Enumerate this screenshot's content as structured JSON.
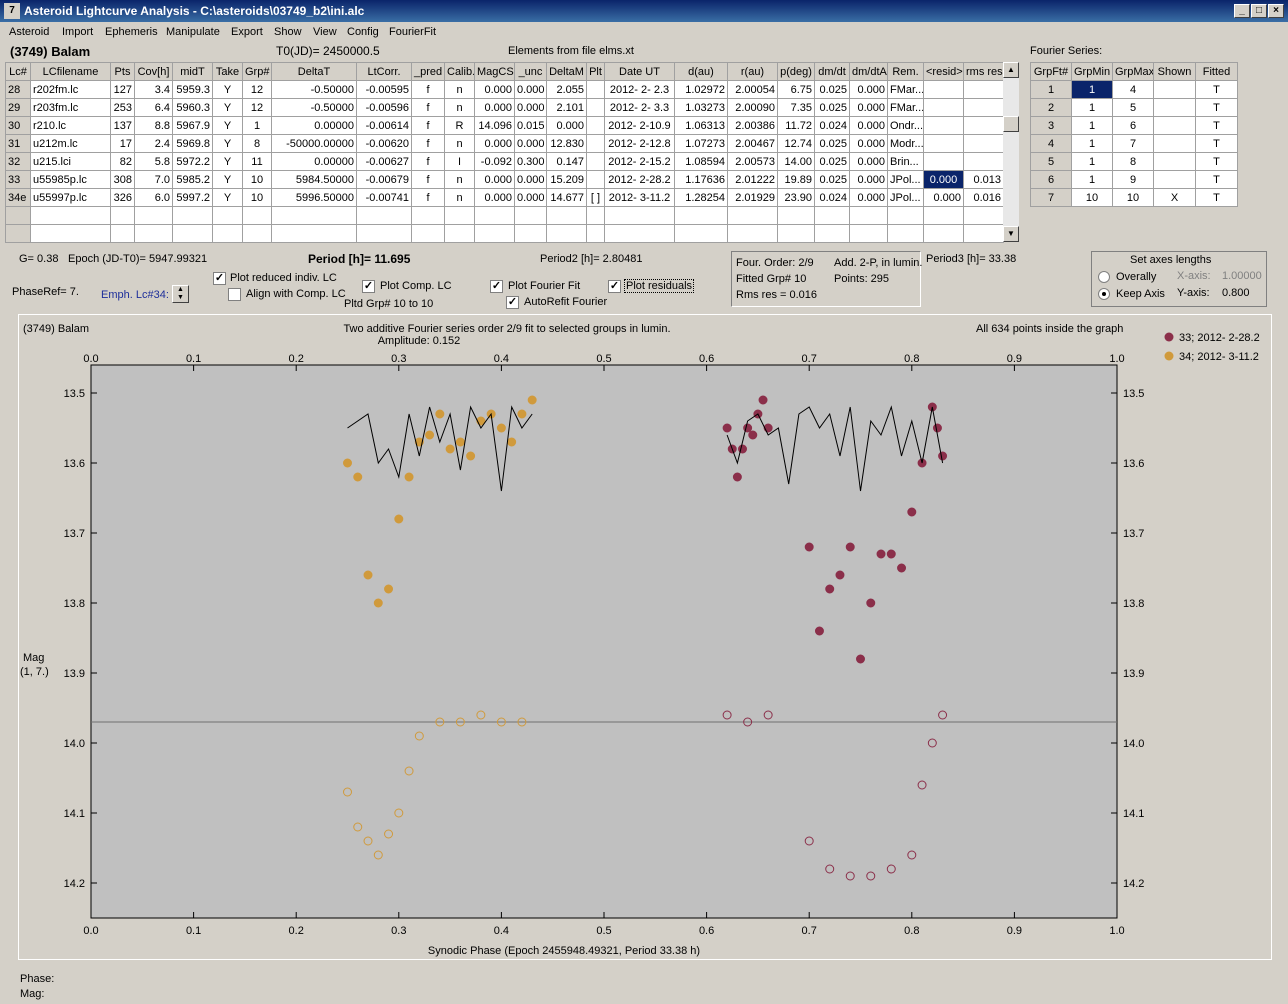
{
  "window": {
    "title": "Asteroid Lightcurve Analysis - C:\\asteroids\\03749_b2\\ini.alc",
    "icon": "ALCDEF-app-icon",
    "min_label": "_",
    "max_label": "□",
    "close_label": "×"
  },
  "menu": [
    "Asteroid",
    "Import",
    "Ephemeris",
    "Manipulate",
    "Export",
    "Show",
    "View",
    "Config",
    "FourierFit"
  ],
  "header": {
    "asteroid": "(3749) Balam",
    "t0": "T0(JD)= 2450000.5",
    "elements": "Elements from file elms.xt"
  },
  "lc_table": {
    "columns": [
      "Lc#",
      "LCfilename",
      "Pts",
      "Cov[h]",
      "midT",
      "Take",
      "Grp#",
      "DeltaT",
      "LtCorr.",
      "_pred",
      "Calib.",
      "MagCS",
      "_unc",
      "DeltaM",
      "Plt",
      "Date UT",
      "d(au)",
      "r(au)",
      "p(deg)",
      "dm/dt",
      "dm/dtA",
      "Rem.",
      "<resid>",
      "rms res"
    ],
    "rows": [
      [
        "28",
        "r202fm.lc",
        "127",
        "3.4",
        "5959.3",
        "Y",
        "12",
        "-0.50000",
        "-0.00595",
        "f",
        "n",
        "0.000",
        "0.000",
        "2.055",
        "",
        "2012- 2- 2.3",
        "1.02972",
        "2.00054",
        "6.75",
        "0.025",
        "0.000",
        "FMar...",
        "",
        ""
      ],
      [
        "29",
        "r203fm.lc",
        "253",
        "6.4",
        "5960.3",
        "Y",
        "12",
        "-0.50000",
        "-0.00596",
        "f",
        "n",
        "0.000",
        "0.000",
        "2.101",
        "",
        "2012- 2- 3.3",
        "1.03273",
        "2.00090",
        "7.35",
        "0.025",
        "0.000",
        "FMar...",
        "",
        ""
      ],
      [
        "30",
        "r210.lc",
        "137",
        "8.8",
        "5967.9",
        "Y",
        "1",
        "0.00000",
        "-0.00614",
        "f",
        "R",
        "14.096",
        "0.015",
        "0.000",
        "",
        "2012- 2-10.9",
        "1.06313",
        "2.00386",
        "11.72",
        "0.024",
        "0.000",
        "Ondr...",
        "",
        ""
      ],
      [
        "31",
        "u212m.lc",
        "17",
        "2.4",
        "5969.8",
        "Y",
        "8",
        "-50000.00000",
        "-0.00620",
        "f",
        "n",
        "0.000",
        "0.000",
        "12.830",
        "",
        "2012- 2-12.8",
        "1.07273",
        "2.00467",
        "12.74",
        "0.025",
        "0.000",
        "Modr...",
        "",
        ""
      ],
      [
        "32",
        "u215.lci",
        "82",
        "5.8",
        "5972.2",
        "Y",
        "11",
        "0.00000",
        "-0.00627",
        "f",
        "I",
        "-0.092",
        "0.300",
        "0.147",
        "",
        "2012- 2-15.2",
        "1.08594",
        "2.00573",
        "14.00",
        "0.025",
        "0.000",
        "Brin...",
        "",
        ""
      ],
      [
        "33",
        "u55985p.lc",
        "308",
        "7.0",
        "5985.2",
        "Y",
        "10",
        "5984.50000",
        "-0.00679",
        "f",
        "n",
        "0.000",
        "0.000",
        "15.209",
        "",
        "2012- 2-28.2",
        "1.17636",
        "2.01222",
        "19.89",
        "0.025",
        "0.000",
        "JPol...",
        "0.000",
        "0.013"
      ],
      [
        "34e",
        "u55997p.lc",
        "326",
        "6.0",
        "5997.2",
        "Y",
        "10",
        "5996.50000",
        "-0.00741",
        "f",
        "n",
        "0.000",
        "0.000",
        "14.677",
        "[ ]",
        "2012- 3-11.2",
        "1.28254",
        "2.01929",
        "23.90",
        "0.024",
        "0.000",
        "JPol...",
        "0.000",
        "0.016"
      ]
    ],
    "empty_rows": 2
  },
  "fourier": {
    "title": "Fourier Series:",
    "columns": [
      "GrpFt#",
      "GrpMin",
      "GrpMax",
      "Shown",
      "Fitted"
    ],
    "rows": [
      [
        "1",
        "1",
        "4",
        "",
        "T"
      ],
      [
        "2",
        "1",
        "5",
        "",
        "T"
      ],
      [
        "3",
        "1",
        "6",
        "",
        "T"
      ],
      [
        "4",
        "1",
        "7",
        "",
        "T"
      ],
      [
        "5",
        "1",
        "8",
        "",
        "T"
      ],
      [
        "6",
        "1",
        "9",
        "",
        "T"
      ],
      [
        "7",
        "10",
        "10",
        "X",
        "T"
      ]
    ]
  },
  "controls": {
    "g": "G= 0.38",
    "epoch": "Epoch (JD-T0)= 5947.99321",
    "period": "Period [h]= 11.695",
    "period2": "Period2 [h]= 2.80481",
    "period3": "Period3 [h]= 33.38",
    "phaseref": "PhaseRef= 7.",
    "emph": "Emph. Lc#34:",
    "plot_reduced": "Plot reduced indiv. LC",
    "align_comp": "Align with Comp. LC",
    "plot_comp": "Plot Comp. LC",
    "pltd_grp": "Pltd Grp#  10 to   10",
    "plot_fourier": "Plot Fourier Fit",
    "autorefit": "AutoRefit Fourier",
    "plot_residuals": "Plot residuals",
    "four_order": "Four. Order:  2/9",
    "add2p": "Add. 2-P, in lumin.",
    "fitted_grp": "Fitted Grp# 10",
    "points": "Points: 295",
    "rms": "Rms res      = 0.016",
    "axes_title": "Set axes lengths",
    "overally": "Overally",
    "keep_axis": "Keep Axis",
    "xaxis_label": "X-axis:",
    "xaxis_val": "1.00000",
    "yaxis_label": "Y-axis:",
    "yaxis_val": "0.800"
  },
  "plot": {
    "asteroid": "(3749) Balam",
    "subtitle1": "Two additive Fourier series order 2/9 fit to selected groups in lumin.",
    "subtitle2": "Amplitude: 0.152",
    "note": "All 634 points inside the graph",
    "xlabel": "Synodic Phase (Epoch 2455948.49321, Period 33.38 h)",
    "ylabel1": "Mag",
    "ylabel2": "(1, 7.)",
    "legend": [
      {
        "label": "33; 2012- 2-28.2",
        "color": "#8b2f4a"
      },
      {
        "label": "34; 2012- 3-11.2",
        "color": "#d09a3c"
      }
    ]
  },
  "status": {
    "phase": "Phase:",
    "mag": "Mag:"
  },
  "chart_data": {
    "type": "scatter",
    "title": "Two additive Fourier series order 2/9 fit to selected groups in lumin.",
    "xlabel": "Synodic Phase (Epoch 2455948.49321, Period 33.38 h)",
    "ylabel": "Mag",
    "xlim": [
      0.0,
      1.0
    ],
    "ylim": [
      14.25,
      13.46
    ],
    "xticks": [
      "0.0",
      "0.1",
      "0.2",
      "0.3",
      "0.4",
      "0.5",
      "0.6",
      "0.7",
      "0.8",
      "0.9",
      "1.0"
    ],
    "yticks": [
      "13.5",
      "13.6",
      "13.7",
      "13.8",
      "13.9",
      "14.0",
      "14.1",
      "14.2"
    ],
    "reference_line": 13.97,
    "grid": false,
    "legend_position": "top-right",
    "series": [
      {
        "name": "33; 2012- 2-28.2",
        "color": "#8b2f4a",
        "marker": "filled",
        "x": [
          0.62,
          0.625,
          0.63,
          0.635,
          0.64,
          0.645,
          0.65,
          0.655,
          0.66,
          0.7,
          0.71,
          0.72,
          0.73,
          0.74,
          0.75,
          0.76,
          0.77,
          0.78,
          0.79,
          0.8,
          0.81,
          0.82,
          0.825,
          0.83
        ],
        "y": [
          13.55,
          13.58,
          13.62,
          13.58,
          13.55,
          13.56,
          13.53,
          13.51,
          13.55,
          13.72,
          13.84,
          13.78,
          13.76,
          13.72,
          13.88,
          13.8,
          13.73,
          13.73,
          13.75,
          13.67,
          13.6,
          13.52,
          13.55,
          13.59
        ]
      },
      {
        "name": "34; 2012- 3-11.2",
        "color": "#d09a3c",
        "marker": "filled",
        "x": [
          0.25,
          0.26,
          0.27,
          0.28,
          0.29,
          0.3,
          0.31,
          0.32,
          0.33,
          0.34,
          0.35,
          0.36,
          0.37,
          0.38,
          0.39,
          0.4,
          0.41,
          0.42,
          0.43
        ],
        "y": [
          13.6,
          13.62,
          13.76,
          13.8,
          13.78,
          13.68,
          13.62,
          13.57,
          13.56,
          13.53,
          13.58,
          13.57,
          13.59,
          13.54,
          13.53,
          13.55,
          13.57,
          13.53,
          13.51
        ]
      },
      {
        "name": "33 residuals",
        "color": "#8b2f4a",
        "marker": "open",
        "x": [
          0.62,
          0.64,
          0.66,
          0.7,
          0.72,
          0.74,
          0.76,
          0.78,
          0.8,
          0.81,
          0.82,
          0.83
        ],
        "y": [
          13.96,
          13.97,
          13.96,
          14.14,
          14.18,
          14.19,
          14.19,
          14.18,
          14.16,
          14.06,
          14.0,
          13.96
        ]
      },
      {
        "name": "34 residuals",
        "color": "#d09a3c",
        "marker": "open",
        "x": [
          0.25,
          0.26,
          0.27,
          0.28,
          0.29,
          0.3,
          0.31,
          0.32,
          0.34,
          0.36,
          0.38,
          0.4,
          0.42
        ],
        "y": [
          14.07,
          14.12,
          14.14,
          14.16,
          14.13,
          14.1,
          14.04,
          13.99,
          13.97,
          13.97,
          13.96,
          13.97,
          13.97
        ]
      },
      {
        "name": "Fourier fit",
        "color": "#000000",
        "marker": "line",
        "x": [
          0.25,
          0.27,
          0.28,
          0.29,
          0.3,
          0.31,
          0.32,
          0.33,
          0.34,
          0.35,
          0.36,
          0.37,
          0.38,
          0.39,
          0.4,
          0.41,
          0.42,
          0.43,
          0.62,
          0.63,
          0.64,
          0.65,
          0.66,
          0.67,
          0.68,
          0.69,
          0.7,
          0.71,
          0.72,
          0.73,
          0.74,
          0.75,
          0.76,
          0.77,
          0.78,
          0.79,
          0.8,
          0.81,
          0.82,
          0.83
        ],
        "y": [
          13.55,
          13.53,
          13.6,
          13.58,
          13.62,
          13.53,
          13.59,
          13.52,
          13.57,
          13.53,
          13.61,
          13.52,
          13.55,
          13.53,
          13.64,
          13.52,
          13.55,
          13.53,
          13.56,
          13.6,
          13.54,
          13.53,
          13.56,
          13.55,
          13.63,
          13.53,
          13.52,
          13.55,
          13.53,
          13.59,
          13.52,
          13.64,
          13.54,
          13.56,
          13.52,
          13.59,
          13.54,
          13.6,
          13.52,
          13.6
        ]
      }
    ]
  }
}
